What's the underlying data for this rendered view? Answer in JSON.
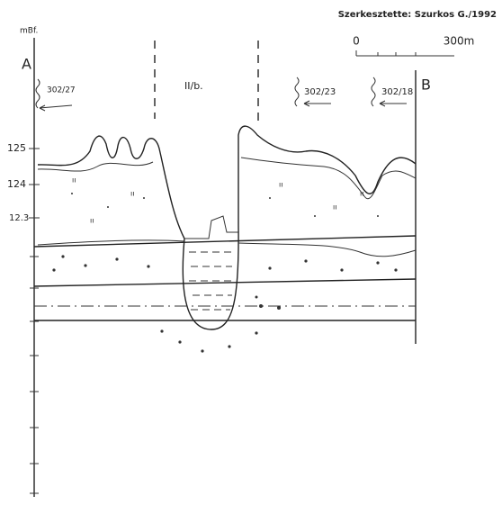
{
  "header": {
    "credit": "Szerkesztette: Szurkos G./1992"
  },
  "scale": {
    "start": "0",
    "end": "300m"
  },
  "axis": {
    "unit": "mBf.",
    "labels": [
      "125",
      "124",
      "12.3"
    ]
  },
  "section": {
    "left_end": "A",
    "right_end": "B",
    "unit_label": "II/b."
  },
  "wells": [
    {
      "label": "302/27"
    },
    {
      "label": "302/23"
    },
    {
      "label": "302/18"
    }
  ]
}
